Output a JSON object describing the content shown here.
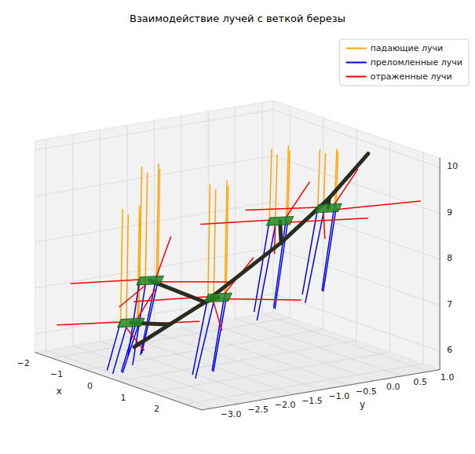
{
  "chart_data": {
    "type": "line3d",
    "title": "Взаимодействие лучей с веткой березы",
    "xlabel": "x",
    "ylabel": "y",
    "xlim": [
      -2.5,
      2.5
    ],
    "ylim": [
      -3.2,
      1.2
    ],
    "zlim": [
      5.6,
      10.2
    ],
    "xticks": [
      {
        "value": -2,
        "label": "−2"
      },
      {
        "value": -1,
        "label": "−1"
      },
      0,
      1,
      2
    ],
    "yticks": [
      {
        "value": -3.0,
        "label": "−3.0"
      },
      {
        "value": -2.5,
        "label": "−2.5"
      },
      {
        "value": -2.0,
        "label": "−2.0"
      },
      {
        "value": -1.5,
        "label": "−1.5"
      },
      {
        "value": -1.0,
        "label": "−1.0"
      },
      {
        "value": -0.5,
        "label": "−0.5"
      },
      {
        "value": 0.0,
        "label": "0.0"
      },
      0.5,
      {
        "value": 1.0,
        "label": "1.0"
      }
    ],
    "zticks": [
      6,
      7,
      8,
      9,
      10
    ],
    "grid": true,
    "legend": "upper right",
    "series": [
      {
        "name": "падающие лучи",
        "color": "#ffa500",
        "segments": [
          [
            [
              -1.25,
              -2.0,
              9.7
            ],
            [
              -1.15,
              -2.1,
              7.3
            ]
          ],
          [
            [
              -0.95,
              -1.85,
              9.7
            ],
            [
              -0.85,
              -1.95,
              7.3
            ]
          ],
          [
            [
              -1.15,
              -1.75,
              9.75
            ],
            [
              -1.05,
              -1.85,
              7.35
            ]
          ],
          [
            [
              -1.0,
              -2.05,
              9.65
            ],
            [
              -0.9,
              -2.15,
              7.25
            ]
          ],
          [
            [
              -0.85,
              -2.6,
              9.0
            ],
            [
              -0.75,
              -2.7,
              6.6
            ]
          ],
          [
            [
              -0.55,
              -2.45,
              9.0
            ],
            [
              -0.45,
              -2.55,
              6.6
            ]
          ],
          [
            [
              -0.75,
              -2.35,
              9.05
            ],
            [
              -0.65,
              -2.45,
              6.65
            ]
          ],
          [
            [
              -0.6,
              -2.65,
              8.95
            ],
            [
              -0.5,
              -2.75,
              6.55
            ]
          ],
          [
            [
              0.15,
              -1.6,
              9.6
            ],
            [
              0.25,
              -1.7,
              7.2
            ]
          ],
          [
            [
              0.45,
              -1.45,
              9.6
            ],
            [
              0.55,
              -1.55,
              7.2
            ]
          ],
          [
            [
              0.25,
              -1.35,
              9.65
            ],
            [
              0.35,
              -1.45,
              7.25
            ]
          ],
          [
            [
              0.4,
              -1.65,
              9.55
            ],
            [
              0.5,
              -1.75,
              7.15
            ]
          ],
          [
            [
              0.05,
              -0.4,
              10.1
            ],
            [
              0.15,
              -0.5,
              8.6
            ]
          ],
          [
            [
              0.35,
              -0.25,
              10.1
            ],
            [
              0.45,
              -0.35,
              8.6
            ]
          ],
          [
            [
              0.15,
              -0.15,
              10.15
            ],
            [
              0.25,
              -0.25,
              8.65
            ]
          ],
          [
            [
              0.3,
              -0.45,
              10.05
            ],
            [
              0.4,
              -0.55,
              8.55
            ]
          ],
          [
            [
              0.85,
              0.0,
              10.2
            ],
            [
              0.95,
              -0.1,
              9.0
            ]
          ],
          [
            [
              1.15,
              0.15,
              10.2
            ],
            [
              1.25,
              0.05,
              9.0
            ]
          ],
          [
            [
              0.95,
              0.25,
              10.2
            ],
            [
              1.05,
              0.15,
              9.05
            ]
          ],
          [
            [
              1.1,
              -0.05,
              10.2
            ],
            [
              1.2,
              -0.15,
              8.95
            ]
          ]
        ]
      },
      {
        "name": "преломленные лучи",
        "color": "#0000ff",
        "segments": [
          [
            [
              -1.15,
              -2.1,
              7.3
            ],
            [
              -0.85,
              -2.5,
              5.8
            ]
          ],
          [
            [
              -0.85,
              -1.95,
              7.3
            ],
            [
              -0.6,
              -2.4,
              5.9
            ]
          ],
          [
            [
              -1.05,
              -1.85,
              7.35
            ],
            [
              -0.8,
              -2.3,
              5.8
            ]
          ],
          [
            [
              -0.9,
              -2.15,
              7.25
            ],
            [
              -0.55,
              -2.6,
              5.7
            ]
          ],
          [
            [
              -0.75,
              -2.7,
              6.6
            ],
            [
              -0.5,
              -3.1,
              5.7
            ]
          ],
          [
            [
              -0.45,
              -2.55,
              6.6
            ],
            [
              -0.2,
              -3.0,
              5.7
            ]
          ],
          [
            [
              -0.65,
              -2.45,
              6.65
            ],
            [
              -0.4,
              -2.9,
              5.65
            ]
          ],
          [
            [
              -0.5,
              -2.75,
              6.55
            ],
            [
              -0.25,
              -3.15,
              5.7
            ]
          ],
          [
            [
              0.25,
              -1.7,
              7.2
            ],
            [
              0.6,
              -2.2,
              5.7
            ]
          ],
          [
            [
              0.55,
              -1.55,
              7.2
            ],
            [
              0.9,
              -2.0,
              5.8
            ]
          ],
          [
            [
              0.35,
              -1.45,
              7.25
            ],
            [
              0.7,
              -1.9,
              5.75
            ]
          ],
          [
            [
              0.5,
              -1.75,
              7.15
            ],
            [
              0.85,
              -2.3,
              5.7
            ]
          ],
          [
            [
              0.15,
              -0.5,
              8.6
            ],
            [
              0.5,
              -1.0,
              6.8
            ]
          ],
          [
            [
              0.45,
              -0.35,
              8.6
            ],
            [
              0.8,
              -0.8,
              6.9
            ]
          ],
          [
            [
              0.25,
              -0.25,
              8.65
            ],
            [
              0.6,
              -0.7,
              6.85
            ]
          ],
          [
            [
              0.4,
              -0.55,
              8.55
            ],
            [
              0.75,
              -1.1,
              6.7
            ]
          ],
          [
            [
              0.95,
              -0.1,
              9.0
            ],
            [
              1.3,
              -0.6,
              7.3
            ]
          ],
          [
            [
              1.25,
              0.05,
              9.0
            ],
            [
              1.6,
              -0.4,
              7.4
            ]
          ],
          [
            [
              1.05,
              0.15,
              9.05
            ],
            [
              1.4,
              -0.3,
              7.35
            ]
          ],
          [
            [
              1.2,
              -0.15,
              8.95
            ],
            [
              1.55,
              -0.7,
              7.2
            ]
          ]
        ]
      },
      {
        "name": "отраженные лучи",
        "color": "#ff0000",
        "segments": [
          [
            [
              -1.15,
              -2.1,
              7.3
            ],
            [
              -2.4,
              -2.6,
              7.0
            ]
          ],
          [
            [
              -0.85,
              -1.95,
              7.3
            ],
            [
              0.4,
              -1.4,
              7.5
            ]
          ],
          [
            [
              -1.05,
              -1.85,
              7.35
            ],
            [
              -2.0,
              -1.0,
              7.8
            ]
          ],
          [
            [
              -0.9,
              -2.15,
              7.25
            ],
            [
              -0.3,
              -3.0,
              7.1
            ]
          ],
          [
            [
              -0.75,
              -2.7,
              6.6
            ],
            [
              -2.0,
              -3.1,
              6.3
            ]
          ],
          [
            [
              -0.45,
              -2.55,
              6.6
            ],
            [
              0.8,
              -2.2,
              6.9
            ]
          ],
          [
            [
              -0.65,
              -2.45,
              6.65
            ],
            [
              -1.5,
              -1.6,
              6.9
            ]
          ],
          [
            [
              -0.5,
              -2.75,
              6.55
            ],
            [
              0.6,
              -3.1,
              6.4
            ]
          ],
          [
            [
              0.25,
              -1.7,
              7.2
            ],
            [
              -1.0,
              -2.3,
              6.9
            ]
          ],
          [
            [
              0.55,
              -1.55,
              7.2
            ],
            [
              1.9,
              -1.0,
              7.4
            ]
          ],
          [
            [
              0.35,
              -1.45,
              7.25
            ],
            [
              -0.5,
              -0.4,
              7.6
            ]
          ],
          [
            [
              0.5,
              -1.75,
              7.15
            ],
            [
              1.8,
              -2.4,
              7.0
            ]
          ],
          [
            [
              0.15,
              -0.5,
              8.6
            ],
            [
              -1.1,
              -1.0,
              8.3
            ]
          ],
          [
            [
              0.45,
              -0.35,
              8.6
            ],
            [
              1.8,
              0.3,
              8.9
            ]
          ],
          [
            [
              0.25,
              -0.25,
              8.65
            ],
            [
              -0.6,
              0.7,
              9.0
            ]
          ],
          [
            [
              0.4,
              -0.55,
              8.55
            ],
            [
              1.6,
              -1.3,
              8.4
            ]
          ],
          [
            [
              0.95,
              -0.1,
              9.0
            ],
            [
              -0.4,
              -0.6,
              8.7
            ]
          ],
          [
            [
              1.25,
              0.05,
              9.0
            ],
            [
              2.4,
              0.9,
              9.3
            ]
          ],
          [
            [
              1.05,
              0.15,
              9.05
            ],
            [
              0.2,
              1.1,
              9.4
            ]
          ],
          [
            [
              1.2,
              -0.15,
              8.95
            ],
            [
              2.3,
              -0.8,
              8.8
            ]
          ]
        ]
      }
    ],
    "branch": {
      "color": "#2b2b1f",
      "lines": [
        [
          [
            -0.5,
            -2.6,
            6.1
          ],
          [
            0.0,
            -1.6,
            7.0
          ],
          [
            0.5,
            -0.5,
            8.2
          ],
          [
            0.8,
            0.2,
            9.1
          ],
          [
            1.0,
            0.8,
            10.0
          ]
        ],
        [
          [
            0.0,
            -1.6,
            7.0
          ],
          [
            -1.0,
            -2.0,
            7.3
          ]
        ],
        [
          [
            -0.25,
            -2.1,
            6.55
          ],
          [
            -0.6,
            -2.6,
            6.6
          ]
        ],
        [
          [
            0.0,
            -1.6,
            7.0
          ],
          [
            0.4,
            -1.6,
            7.2
          ]
        ],
        [
          [
            0.5,
            -0.5,
            8.2
          ],
          [
            0.3,
            -0.4,
            8.6
          ]
        ],
        [
          [
            0.8,
            0.2,
            9.1
          ],
          [
            1.1,
            0.0,
            9.0
          ]
        ]
      ]
    },
    "leaves": {
      "color": "#228b22",
      "polygons": [
        [
          [
            -1.3,
            -2.0,
            7.3
          ],
          [
            -1.0,
            -1.75,
            7.35
          ],
          [
            -0.7,
            -2.0,
            7.3
          ],
          [
            -1.0,
            -2.25,
            7.25
          ]
        ],
        [
          [
            -0.9,
            -2.6,
            6.6
          ],
          [
            -0.6,
            -2.35,
            6.65
          ],
          [
            -0.3,
            -2.6,
            6.6
          ],
          [
            -0.6,
            -2.85,
            6.55
          ]
        ],
        [
          [
            0.1,
            -1.6,
            7.2
          ],
          [
            0.4,
            -1.35,
            7.25
          ],
          [
            0.7,
            -1.6,
            7.2
          ],
          [
            0.4,
            -1.85,
            7.15
          ]
        ],
        [
          [
            0.0,
            -0.4,
            8.6
          ],
          [
            0.3,
            -0.15,
            8.65
          ],
          [
            0.6,
            -0.4,
            8.6
          ],
          [
            0.3,
            -0.65,
            8.55
          ]
        ],
        [
          [
            0.8,
            0.0,
            9.0
          ],
          [
            1.1,
            0.25,
            9.05
          ],
          [
            1.4,
            0.0,
            9.0
          ],
          [
            1.1,
            -0.25,
            8.95
          ]
        ]
      ]
    }
  }
}
